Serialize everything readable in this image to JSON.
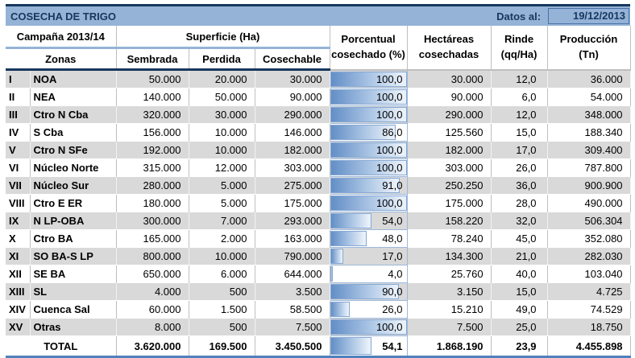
{
  "title": "COSECHA DE TRIGO",
  "datos": {
    "label": "Datos al:",
    "value": "19/12/2013"
  },
  "header": {
    "campana": "Campaña 2013/14",
    "superficie": "Superficie (Ha)",
    "zonas": "Zonas",
    "sembrada": "Sembrada",
    "perdida": "Perdida",
    "cosechable": "Cosechable",
    "porcentual_line1": "Porcentual",
    "porcentual_line2": "cosechado (%)",
    "hectareas_line1": "Hectáreas",
    "hectareas_line2": "cosechadas",
    "rinde_line1": "Rinde",
    "rinde_line2": "(qq/Ha)",
    "produccion_line1": "Producción",
    "produccion_line2": "(Tn)"
  },
  "rows": [
    {
      "num": "I",
      "zone": "NOA",
      "sembrada": "50.000",
      "perdida": "20.000",
      "cosechable": "30.000",
      "pct": "100,0",
      "pct_value": 100,
      "hectareas": "30.000",
      "rinde": "12,0",
      "produccion": "36.000"
    },
    {
      "num": "II",
      "zone": "NEA",
      "sembrada": "140.000",
      "perdida": "50.000",
      "cosechable": "90.000",
      "pct": "100,0",
      "pct_value": 100,
      "hectareas": "90.000",
      "rinde": "6,0",
      "produccion": "54.000"
    },
    {
      "num": "III",
      "zone": "Ctro N Cba",
      "sembrada": "320.000",
      "perdida": "30.000",
      "cosechable": "290.000",
      "pct": "100,0",
      "pct_value": 100,
      "hectareas": "290.000",
      "rinde": "12,0",
      "produccion": "348.000"
    },
    {
      "num": "IV",
      "zone": "S Cba",
      "sembrada": "156.000",
      "perdida": "10.000",
      "cosechable": "146.000",
      "pct": "86,0",
      "pct_value": 86,
      "hectareas": "125.560",
      "rinde": "15,0",
      "produccion": "188.340"
    },
    {
      "num": "V",
      "zone": "Ctro N SFe",
      "sembrada": "192.000",
      "perdida": "10.000",
      "cosechable": "182.000",
      "pct": "100,0",
      "pct_value": 100,
      "hectareas": "182.000",
      "rinde": "17,0",
      "produccion": "309.400"
    },
    {
      "num": "VI",
      "zone": "Núcleo Norte",
      "sembrada": "315.000",
      "perdida": "12.000",
      "cosechable": "303.000",
      "pct": "100,0",
      "pct_value": 100,
      "hectareas": "303.000",
      "rinde": "26,0",
      "produccion": "787.800"
    },
    {
      "num": "VII",
      "zone": "Núcleo Sur",
      "sembrada": "280.000",
      "perdida": "5.000",
      "cosechable": "275.000",
      "pct": "91,0",
      "pct_value": 91,
      "hectareas": "250.250",
      "rinde": "36,0",
      "produccion": "900.900"
    },
    {
      "num": "VIII",
      "zone": "Ctro E ER",
      "sembrada": "180.000",
      "perdida": "5.000",
      "cosechable": "175.000",
      "pct": "100,0",
      "pct_value": 100,
      "hectareas": "175.000",
      "rinde": "28,0",
      "produccion": "490.000"
    },
    {
      "num": "IX",
      "zone": "N LP-OBA",
      "sembrada": "300.000",
      "perdida": "7.000",
      "cosechable": "293.000",
      "pct": "54,0",
      "pct_value": 54,
      "hectareas": "158.220",
      "rinde": "32,0",
      "produccion": "506.304"
    },
    {
      "num": "X",
      "zone": "Ctro BA",
      "sembrada": "165.000",
      "perdida": "2.000",
      "cosechable": "163.000",
      "pct": "48,0",
      "pct_value": 48,
      "hectareas": "78.240",
      "rinde": "45,0",
      "produccion": "352.080"
    },
    {
      "num": "XI",
      "zone": "SO BA-S LP",
      "sembrada": "800.000",
      "perdida": "10.000",
      "cosechable": "790.000",
      "pct": "17,0",
      "pct_value": 17,
      "hectareas": "134.300",
      "rinde": "21,0",
      "produccion": "282.030"
    },
    {
      "num": "XII",
      "zone": "SE BA",
      "sembrada": "650.000",
      "perdida": "6.000",
      "cosechable": "644.000",
      "pct": "4,0",
      "pct_value": 4,
      "hectareas": "25.760",
      "rinde": "40,0",
      "produccion": "103.040"
    },
    {
      "num": "XIII",
      "zone": "SL",
      "sembrada": "4.000",
      "perdida": "500",
      "cosechable": "3.500",
      "pct": "90,0",
      "pct_value": 90,
      "hectareas": "3.150",
      "rinde": "15,0",
      "produccion": "4.725"
    },
    {
      "num": "XIV",
      "zone": "Cuenca Sal",
      "sembrada": "60.000",
      "perdida": "1.500",
      "cosechable": "58.500",
      "pct": "26,0",
      "pct_value": 26,
      "hectareas": "15.210",
      "rinde": "49,0",
      "produccion": "74.529"
    },
    {
      "num": "XV",
      "zone": "Otras",
      "sembrada": "8.000",
      "perdida": "500",
      "cosechable": "7.500",
      "pct": "100,0",
      "pct_value": 100,
      "hectareas": "7.500",
      "rinde": "25,0",
      "produccion": "18.750"
    }
  ],
  "total": {
    "label": "TOTAL",
    "sembrada": "3.620.000",
    "perdida": "169.500",
    "cosechable": "3.450.500",
    "pct": "54,1",
    "pct_value": 54.1,
    "hectareas": "1.868.190",
    "rinde": "23,9",
    "produccion": "4.455.898"
  },
  "colors": {
    "title_bar": "#95B3D7",
    "top_border": "#17375E",
    "bottom_border": "#4F81BD",
    "navy_text": "#17375E",
    "row_alt": "#D9D9D9",
    "bar_fill_start": "#638EC6",
    "bar_border": "#86A9D4",
    "pct_cell_border": "#9CB8DC"
  }
}
